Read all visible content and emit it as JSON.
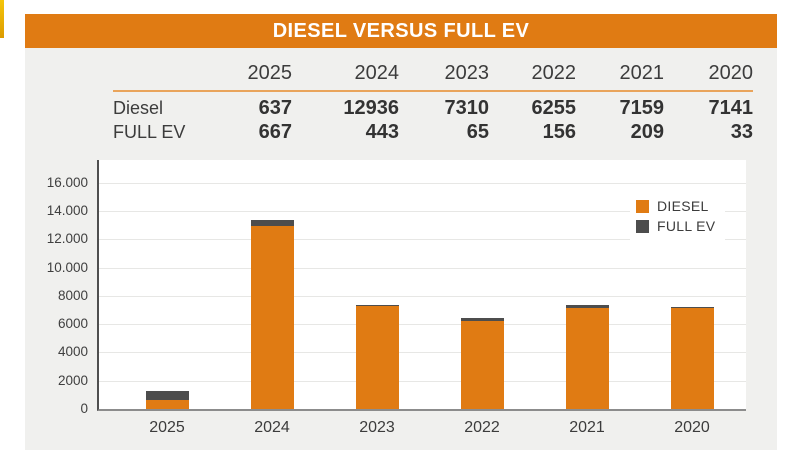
{
  "title": "DIESEL VERSUS FULL EV",
  "table": {
    "corner_label": "",
    "years": [
      "2025",
      "2024",
      "2023",
      "2022",
      "2021",
      "2020"
    ],
    "rows": [
      {
        "label": "Diesel",
        "values": [
          "637",
          "12936",
          "7310",
          "6255",
          "7159",
          "7141"
        ]
      },
      {
        "label": "FULL EV",
        "values": [
          "667",
          "443",
          "65",
          "156",
          "209",
          "33"
        ]
      }
    ]
  },
  "chart_data": {
    "type": "bar",
    "stacked": true,
    "title": "DIESEL VERSUS FULL EV",
    "categories": [
      "2025",
      "2024",
      "2023",
      "2022",
      "2021",
      "2020"
    ],
    "series": [
      {
        "name": "DIESEL",
        "color": "#E07B13",
        "values": [
          637,
          12936,
          7310,
          6255,
          7159,
          7141
        ]
      },
      {
        "name": "FULL EV",
        "color": "#4D4D4D",
        "values": [
          667,
          443,
          65,
          156,
          209,
          33
        ]
      }
    ],
    "y_ticks": [
      {
        "label": "16.000",
        "value": 16000
      },
      {
        "label": "14.000",
        "value": 14000
      },
      {
        "label": "12.000",
        "value": 12000
      },
      {
        "label": "10.000",
        "value": 10000
      },
      {
        "label": "8000",
        "value": 8000
      },
      {
        "label": "6000",
        "value": 6000
      },
      {
        "label": "4000",
        "value": 4000
      },
      {
        "label": "2000",
        "value": 2000
      },
      {
        "label": "0",
        "value": 0
      }
    ],
    "xlabel": "",
    "ylabel": "",
    "ylim": [
      0,
      17600
    ],
    "grid": true,
    "legend_position": "top-right"
  },
  "colors": {
    "accent_orange": "#E07B13",
    "dark_gray": "#4D4D4D",
    "card_bg": "#F0F0EE",
    "table_rule": "#E9A45B",
    "gold_strip_top": "#F5C60A",
    "gold_strip_bottom": "#DC9B00"
  }
}
